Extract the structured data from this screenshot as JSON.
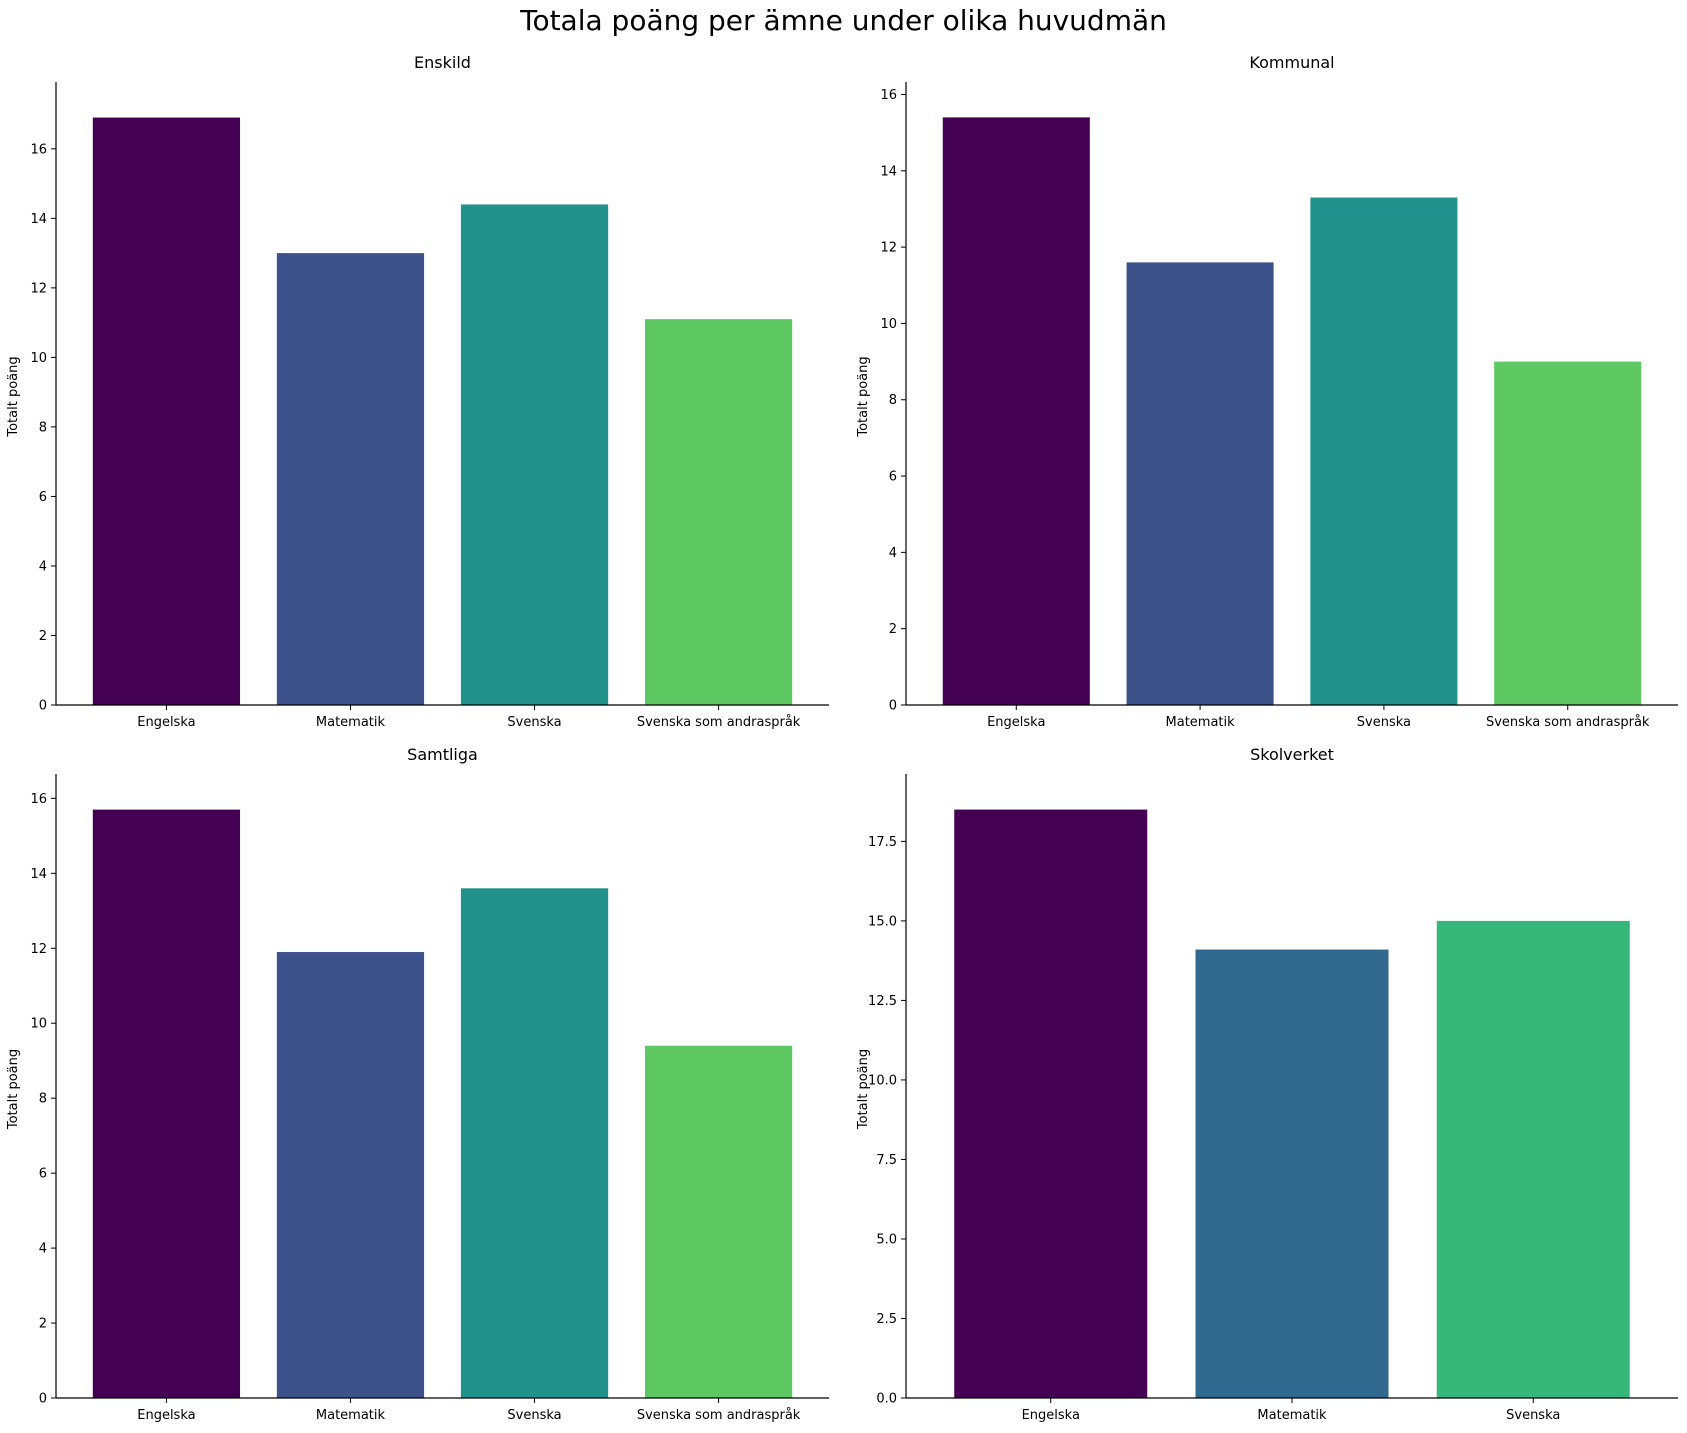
{
  "figure": {
    "title": "Totala poäng per ämne under olika huvudmän"
  },
  "chart_data": [
    {
      "type": "bar",
      "title": "Enskild",
      "ylabel": "Totalt poäng",
      "categories": [
        "Engelska",
        "Matematik",
        "Svenska",
        "Svenska som andraspråk"
      ],
      "values": [
        16.9,
        13.0,
        14.4,
        11.1
      ],
      "colors": [
        "#440154",
        "#3b528b",
        "#21918c",
        "#5ec962"
      ],
      "ylim": [
        0,
        17.75
      ],
      "yticks": [
        0,
        2,
        4,
        6,
        8,
        10,
        12,
        14,
        16
      ],
      "ytick_labels": [
        "0",
        "2",
        "4",
        "6",
        "8",
        "10",
        "12",
        "14",
        "16"
      ]
    },
    {
      "type": "bar",
      "title": "Kommunal",
      "ylabel": "Totalt poäng",
      "categories": [
        "Engelska",
        "Matematik",
        "Svenska",
        "Svenska som andraspråk"
      ],
      "values": [
        15.4,
        11.6,
        13.3,
        9.0
      ],
      "colors": [
        "#440154",
        "#3b528b",
        "#21918c",
        "#5ec962"
      ],
      "ylim": [
        0,
        16.17
      ],
      "yticks": [
        0,
        2,
        4,
        6,
        8,
        10,
        12,
        14,
        16
      ],
      "ytick_labels": [
        "0",
        "2",
        "4",
        "6",
        "8",
        "10",
        "12",
        "14",
        "16"
      ]
    },
    {
      "type": "bar",
      "title": "Samtliga",
      "ylabel": "Totalt poäng",
      "categories": [
        "Engelska",
        "Matematik",
        "Svenska",
        "Svenska som andraspråk"
      ],
      "values": [
        15.7,
        11.9,
        13.6,
        9.4
      ],
      "colors": [
        "#440154",
        "#3b528b",
        "#21918c",
        "#5ec962"
      ],
      "ylim": [
        0,
        16.49
      ],
      "yticks": [
        0,
        2,
        4,
        6,
        8,
        10,
        12,
        14,
        16
      ],
      "ytick_labels": [
        "0",
        "2",
        "4",
        "6",
        "8",
        "10",
        "12",
        "14",
        "16"
      ]
    },
    {
      "type": "bar",
      "title": "Skolverket",
      "ylabel": "Totalt poäng",
      "categories": [
        "Engelska",
        "Matematik",
        "Svenska"
      ],
      "values": [
        18.5,
        14.1,
        15.0
      ],
      "colors": [
        "#440154",
        "#31688e",
        "#35b779"
      ],
      "ylim": [
        0,
        19.43
      ],
      "yticks": [
        0,
        2.5,
        5,
        7.5,
        10,
        12.5,
        15,
        17.5
      ],
      "ytick_labels": [
        "0.0",
        "2.5",
        "5.0",
        "7.5",
        "10.0",
        "12.5",
        "15.0",
        "17.5"
      ]
    }
  ]
}
